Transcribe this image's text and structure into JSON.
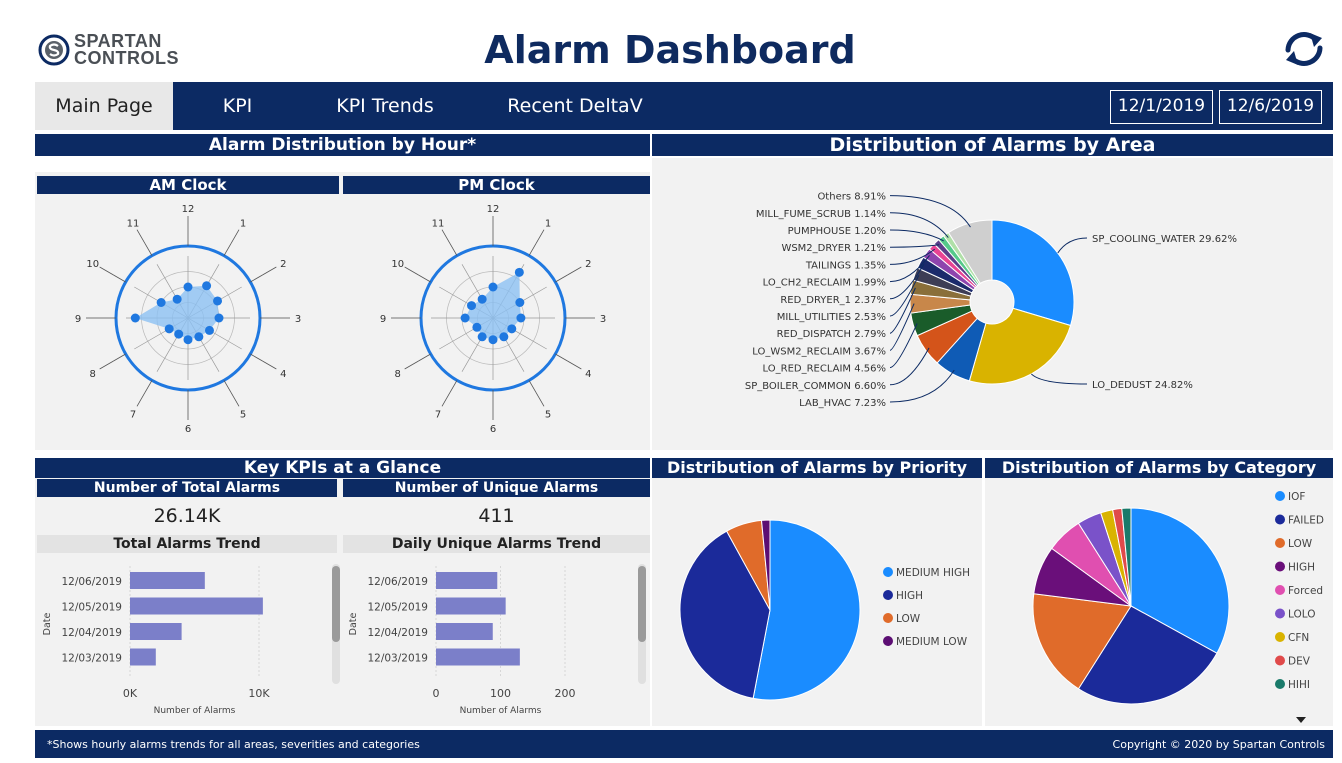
{
  "header": {
    "logo_line1": "SPARTAN",
    "logo_line2": "CONTROLS",
    "title": "Alarm Dashboard"
  },
  "nav": {
    "tabs": [
      {
        "label": "Main Page",
        "active": true
      },
      {
        "label": "KPI",
        "active": false
      },
      {
        "label": "KPI Trends",
        "active": false
      },
      {
        "label": "Recent DeltaV Events",
        "active": false
      }
    ],
    "date_start": "12/1/2019",
    "date_end": "12/6/2019"
  },
  "hour_section": {
    "title": "Alarm Distribution by Hour*",
    "am_title": "AM Clock",
    "pm_title": "PM Clock"
  },
  "area_section": {
    "title": "Distribution of Alarms by Area"
  },
  "kpi_section": {
    "title": "Key KPIs at a Glance",
    "total_label": "Number of Total Alarms",
    "total_value": "26.14K",
    "unique_label": "Number of Unique Alarms",
    "unique_value": "411",
    "total_trend_title": "Total Alarms Trend",
    "unique_trend_title": "Daily Unique Alarms Trend"
  },
  "priority_section": {
    "title": "Distribution of Alarms by Priority"
  },
  "category_section": {
    "title": "Distribution of Alarms by Category"
  },
  "footer": {
    "note": "*Shows hourly alarms trends for all areas, severities and categories",
    "copyright": "Copyright © 2020 by Spartan Controls"
  },
  "colors": {
    "navy": "#0c2a63",
    "radar": "#1f78e0",
    "bar": "#7b7fc9"
  },
  "chart_data": [
    {
      "type": "radar",
      "name": "am-clock",
      "title": "AM Clock",
      "categories": [
        "12",
        "1",
        "2",
        "3",
        "4",
        "5",
        "6",
        "7",
        "8",
        "9",
        "10",
        "11"
      ],
      "values": [
        0.5,
        0.6,
        0.55,
        0.5,
        0.4,
        0.35,
        0.35,
        0.3,
        0.35,
        0.85,
        0.5,
        0.35
      ]
    },
    {
      "type": "radar",
      "name": "pm-clock",
      "title": "PM Clock",
      "categories": [
        "12",
        "1",
        "2",
        "3",
        "4",
        "5",
        "6",
        "7",
        "8",
        "9",
        "10",
        "11"
      ],
      "values": [
        0.5,
        0.85,
        0.5,
        0.45,
        0.35,
        0.35,
        0.35,
        0.35,
        0.3,
        0.45,
        0.4,
        0.35
      ]
    },
    {
      "type": "pie",
      "name": "area-distribution",
      "title": "Distribution of Alarms by Area",
      "slices": [
        {
          "label": "SP_COOLING_WATER 29.62%",
          "value": 29.62,
          "color": "#1a8cff"
        },
        {
          "label": "LO_DEDUST 24.82%",
          "value": 24.82,
          "color": "#d9b300"
        },
        {
          "label": "LAB_HVAC 7.23%",
          "value": 7.23,
          "color": "#0f5bb5"
        },
        {
          "label": "SP_BOILER_COMMON 6.60%",
          "value": 6.6,
          "color": "#d4541a"
        },
        {
          "label": "LO_RED_RECLAIM 4.56%",
          "value": 4.56,
          "color": "#1a5c2a"
        },
        {
          "label": "LO_WSM2_RECLAIM 3.67%",
          "value": 3.67,
          "color": "#c8874a"
        },
        {
          "label": "RED_DISPATCH 2.79%",
          "value": 2.79,
          "color": "#8a6f3a"
        },
        {
          "label": "MILL_UTILITIES 2.53%",
          "value": 2.53,
          "color": "#3d3d55"
        },
        {
          "label": "RED_DRYER_1 2.37%",
          "value": 2.37,
          "color": "#1b2a6b"
        },
        {
          "label": "LO_CH2_RECLAIM 1.99%",
          "value": 1.99,
          "color": "#8e44ad"
        },
        {
          "label": "TAILINGS 1.35%",
          "value": 1.35,
          "color": "#e84393"
        },
        {
          "label": "WSM2_DRYER 1.21%",
          "value": 1.21,
          "color": "#5b3e8a"
        },
        {
          "label": "PUMPHOUSE 1.20%",
          "value": 1.2,
          "color": "#55c98a"
        },
        {
          "label": "MILL_FUME_SCRUB 1.14%",
          "value": 1.14,
          "color": "#b0e0a8"
        },
        {
          "label": "Others 8.91%",
          "value": 8.91,
          "color": "#cfcfcf"
        }
      ]
    },
    {
      "type": "pie",
      "name": "priority-distribution",
      "title": "Distribution of Alarms by Priority",
      "slices": [
        {
          "label": "MEDIUM HIGH",
          "value": 53,
          "color": "#1a8cff"
        },
        {
          "label": "HIGH",
          "value": 39,
          "color": "#1b2a9a"
        },
        {
          "label": "LOW",
          "value": 6.5,
          "color": "#e06b2a"
        },
        {
          "label": "MEDIUM LOW",
          "value": 1.5,
          "color": "#5c0e73"
        }
      ]
    },
    {
      "type": "pie",
      "name": "category-distribution",
      "title": "Distribution of Alarms by Category",
      "slices": [
        {
          "label": "IOF",
          "value": 33,
          "color": "#1a8cff"
        },
        {
          "label": "FAILED",
          "value": 26,
          "color": "#1b2a9a"
        },
        {
          "label": "LOW",
          "value": 18,
          "color": "#e06b2a"
        },
        {
          "label": "HIGH",
          "value": 8,
          "color": "#6a0f7a"
        },
        {
          "label": "Forced",
          "value": 6,
          "color": "#e04fb0"
        },
        {
          "label": "LOLO",
          "value": 4,
          "color": "#7a52c9"
        },
        {
          "label": "CFN",
          "value": 2,
          "color": "#d9b300"
        },
        {
          "label": "DEV",
          "value": 1.5,
          "color": "#e04a4a"
        },
        {
          "label": "HIHI",
          "value": 1.5,
          "color": "#1a7a6a"
        }
      ]
    },
    {
      "type": "bar",
      "name": "total-alarms-trend",
      "title": "Total Alarms Trend",
      "orientation": "horizontal",
      "categories": [
        "12/06/2019",
        "12/05/2019",
        "12/04/2019",
        "12/03/2019"
      ],
      "values": [
        5800,
        10300,
        4000,
        2000
      ],
      "xlim": [
        0,
        10000
      ],
      "xticks": [
        "0K",
        "10K"
      ],
      "xlabel": "Number of Alarms",
      "ylabel": "Date"
    },
    {
      "type": "bar",
      "name": "daily-unique-alarms-trend",
      "title": "Daily Unique Alarms Trend",
      "orientation": "horizontal",
      "categories": [
        "12/06/2019",
        "12/05/2019",
        "12/04/2019",
        "12/03/2019"
      ],
      "values": [
        95,
        108,
        88,
        130
      ],
      "xlim": [
        0,
        200
      ],
      "xticks": [
        "0",
        "100",
        "200"
      ],
      "xlabel": "Number of Alarms",
      "ylabel": "Date"
    }
  ]
}
